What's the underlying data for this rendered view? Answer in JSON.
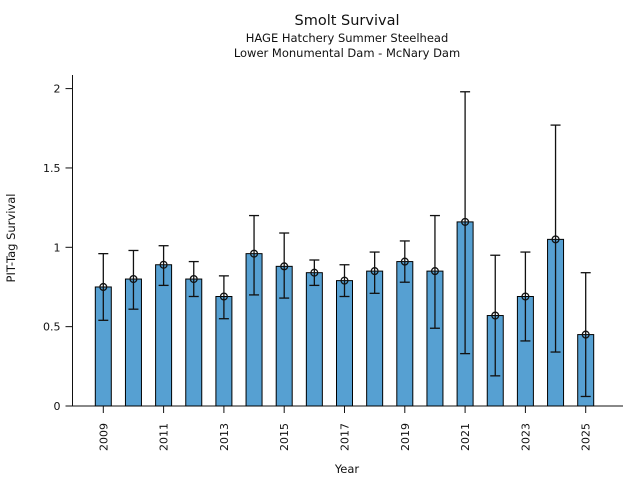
{
  "chart_data": {
    "type": "bar",
    "title": "Smolt Survival",
    "subtitle_line1": "HAGE Hatchery Summer Steelhead",
    "subtitle_line2": "Lower Monumental Dam - McNary Dam",
    "xlabel": "Year",
    "ylabel": "PIT-Tag Survival",
    "categories": [
      2009,
      2010,
      2011,
      2012,
      2013,
      2014,
      2015,
      2016,
      2017,
      2018,
      2019,
      2020,
      2021,
      2022,
      2023,
      2024,
      2025
    ],
    "values": [
      0.75,
      0.8,
      0.89,
      0.8,
      0.69,
      0.96,
      0.88,
      0.84,
      0.79,
      0.85,
      0.91,
      0.85,
      1.16,
      0.57,
      0.69,
      1.05,
      0.45
    ],
    "error_low": [
      0.54,
      0.61,
      0.76,
      0.69,
      0.55,
      0.7,
      0.68,
      0.76,
      0.69,
      0.71,
      0.78,
      0.49,
      0.33,
      0.19,
      0.41,
      0.34,
      0.06
    ],
    "error_high": [
      0.96,
      0.98,
      1.01,
      0.91,
      0.82,
      1.2,
      1.09,
      0.92,
      0.89,
      0.97,
      1.04,
      1.2,
      1.98,
      0.95,
      0.97,
      1.77,
      0.84
    ],
    "xticks_labeled": [
      2009,
      2011,
      2013,
      2015,
      2017,
      2019,
      2021,
      2023,
      2025
    ],
    "yticks": [
      0,
      0.5,
      1,
      1.5,
      2
    ],
    "ylim": [
      0,
      2.09
    ],
    "grid": false,
    "legend_position": "none",
    "bar_color": "#56a0d2",
    "bar_edge_color": "#000000",
    "error_bar_color": "#111111",
    "marker": "open-circle"
  }
}
